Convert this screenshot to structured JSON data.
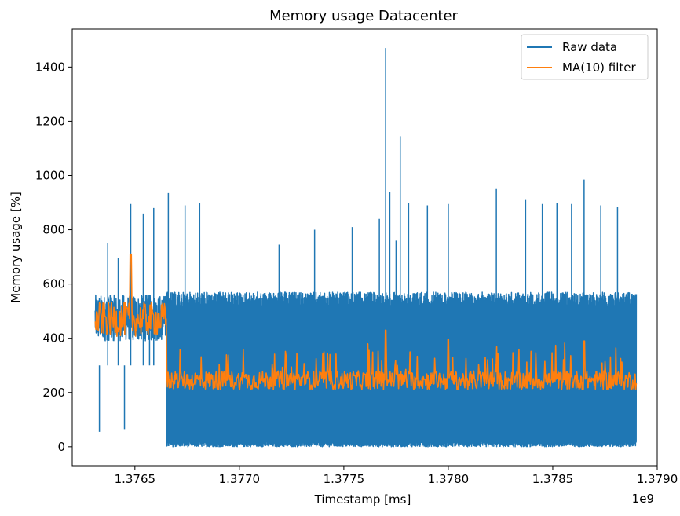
{
  "chart_data": {
    "type": "line",
    "title": "Memory usage Datacenter",
    "xlabel": "Timestamp [ms]",
    "ylabel": "Memory usage [%]",
    "x_offset_label": "1e9",
    "xlim": [
      1.3762,
      1.379
    ],
    "ylim": [
      -70,
      1540
    ],
    "x_ticks": [
      1.3765,
      1.377,
      1.3775,
      1.378,
      1.3785,
      1.379
    ],
    "x_tick_labels": [
      "1.3765",
      "1.3770",
      "1.3775",
      "1.3780",
      "1.3785",
      "1.3790"
    ],
    "y_ticks": [
      0,
      200,
      400,
      600,
      800,
      1000,
      1200,
      1400
    ],
    "y_tick_labels": [
      "0",
      "200",
      "400",
      "600",
      "800",
      "1000",
      "1200",
      "1400"
    ],
    "grid": false,
    "legend_position": "top-right",
    "series": [
      {
        "name": "Raw data",
        "color": "#1f77b4",
        "x_range": [
          1.37631,
          1.3789
        ],
        "phase1_end": 1.37665,
        "phase1_range": [
          390,
          560
        ],
        "phase2_range": [
          0,
          570
        ],
        "spikes": [
          {
            "x": 1.37633,
            "y": 55
          },
          {
            "x": 1.37637,
            "y": 750
          },
          {
            "x": 1.37642,
            "y": 695
          },
          {
            "x": 1.37645,
            "y": 65
          },
          {
            "x": 1.37648,
            "y": 895
          },
          {
            "x": 1.37654,
            "y": 860
          },
          {
            "x": 1.37657,
            "y": 420
          },
          {
            "x": 1.37659,
            "y": 880
          },
          {
            "x": 1.37666,
            "y": 935
          },
          {
            "x": 1.37674,
            "y": 890
          },
          {
            "x": 1.37681,
            "y": 900
          },
          {
            "x": 1.37719,
            "y": 745
          },
          {
            "x": 1.37736,
            "y": 800
          },
          {
            "x": 1.37754,
            "y": 810
          },
          {
            "x": 1.37767,
            "y": 840
          },
          {
            "x": 1.3777,
            "y": 1470
          },
          {
            "x": 1.37772,
            "y": 940
          },
          {
            "x": 1.37775,
            "y": 760
          },
          {
            "x": 1.37777,
            "y": 1145
          },
          {
            "x": 1.37781,
            "y": 900
          },
          {
            "x": 1.3779,
            "y": 890
          },
          {
            "x": 1.378,
            "y": 895
          },
          {
            "x": 1.37823,
            "y": 950
          },
          {
            "x": 1.37837,
            "y": 910
          },
          {
            "x": 1.37845,
            "y": 895
          },
          {
            "x": 1.37852,
            "y": 900
          },
          {
            "x": 1.37859,
            "y": 895
          },
          {
            "x": 1.37865,
            "y": 985
          },
          {
            "x": 1.37873,
            "y": 890
          },
          {
            "x": 1.37881,
            "y": 885
          }
        ]
      },
      {
        "name": "MA(10) filter",
        "color": "#ff7f0e",
        "x_range": [
          1.37631,
          1.3789
        ],
        "phase1_level": 470,
        "phase1_noise": 90,
        "phase2_level": 245,
        "phase2_noise": 70,
        "peaks": [
          {
            "x": 1.37648,
            "y": 710
          },
          {
            "x": 1.3777,
            "y": 430
          },
          {
            "x": 1.378,
            "y": 395
          },
          {
            "x": 1.37865,
            "y": 390
          }
        ]
      }
    ]
  }
}
